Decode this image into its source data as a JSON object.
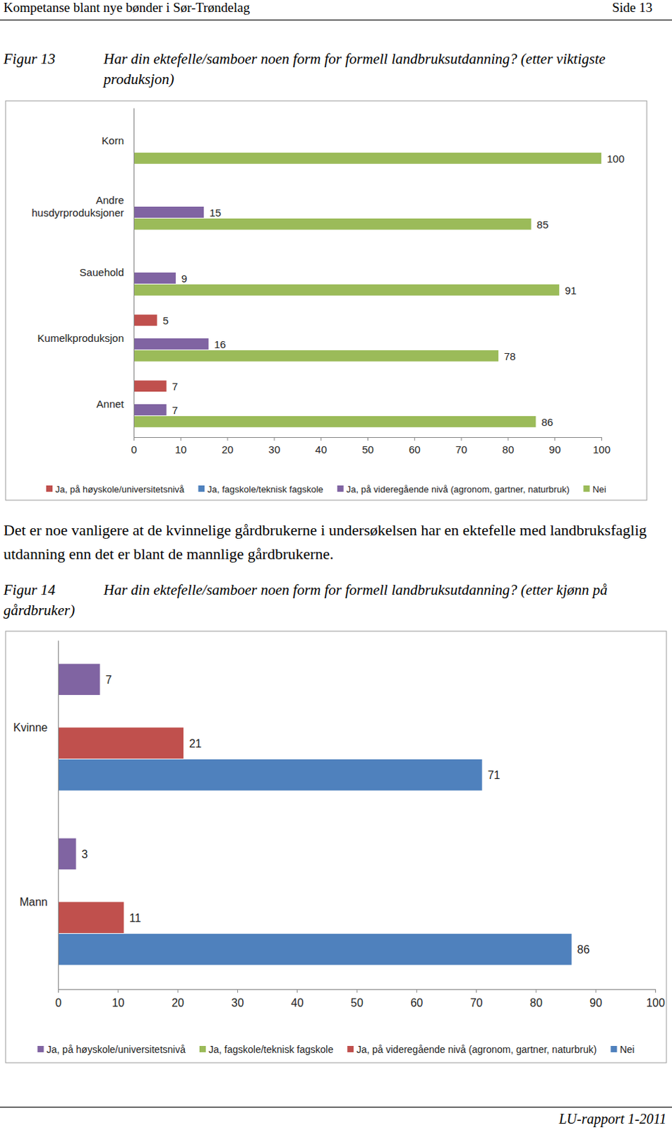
{
  "header": {
    "title": "Kompetanse blant nye bønder i Sør-Trøndelag",
    "page": "Side 13"
  },
  "paragraph": "Det er noe vanligere at de kvinnelige gårdbrukerne i undersøkelsen har en ektefelle med landbruksfaglig utdanning enn det er blant de mannlige gårdbrukerne.",
  "footer": "LU-rapport 1-2011",
  "chart_data": [
    {
      "type": "bar",
      "orientation": "horizontal",
      "figure": "Figur 13",
      "title": "Har din ektefelle/samboer noen form for formell landbruksutdanning? (etter viktigste produksjon)",
      "categories": [
        "Korn",
        "Andre husdyrproduksjoner",
        "Sauehold",
        "Kumelkproduksjon",
        "Annet"
      ],
      "series": [
        {
          "name": "Ja, på høyskole/universitetsnivå",
          "color": "#c0504d",
          "values": [
            null,
            null,
            null,
            5,
            7
          ]
        },
        {
          "name": "Ja, fagskole/teknisk fagskole",
          "color": "#4f81bd",
          "values": [
            null,
            null,
            null,
            null,
            null
          ]
        },
        {
          "name": "Ja, på videregående nivå (agronom, gartner, naturbruk)",
          "color": "#8064a2",
          "values": [
            null,
            15,
            9,
            16,
            7
          ]
        },
        {
          "name": "Nei",
          "color": "#9bbb59",
          "values": [
            100,
            85,
            91,
            78,
            86
          ]
        }
      ],
      "xlim": [
        0,
        100
      ],
      "xticks": [
        0,
        10,
        20,
        30,
        40,
        50,
        60,
        70,
        80,
        90,
        100
      ],
      "grid": false,
      "legend": "bottom",
      "data_labels": true
    },
    {
      "type": "bar",
      "orientation": "horizontal",
      "figure": "Figur 14",
      "title": "Har din ektefelle/samboer noen form for formell landbruksutdanning? (etter kjønn på gårdbruker)",
      "categories": [
        "Kvinne",
        "Mann"
      ],
      "series": [
        {
          "name": "Ja, på høyskole/universitetsnivå",
          "color": "#8064a2",
          "values": [
            7,
            3
          ]
        },
        {
          "name": "Ja, fagskole/teknisk fagskole",
          "color": "#9bbb59",
          "values": [
            null,
            null
          ]
        },
        {
          "name": "Ja, på videregående nivå (agronom, gartner, naturbruk)",
          "color": "#c0504d",
          "values": [
            21,
            11
          ]
        },
        {
          "name": "Nei",
          "color": "#4f81bd",
          "values": [
            71,
            86
          ]
        }
      ],
      "xlim": [
        0,
        100
      ],
      "xticks": [
        0,
        10,
        20,
        30,
        40,
        50,
        60,
        70,
        80,
        90,
        100
      ],
      "grid": false,
      "legend": "bottom",
      "data_labels": true
    }
  ]
}
